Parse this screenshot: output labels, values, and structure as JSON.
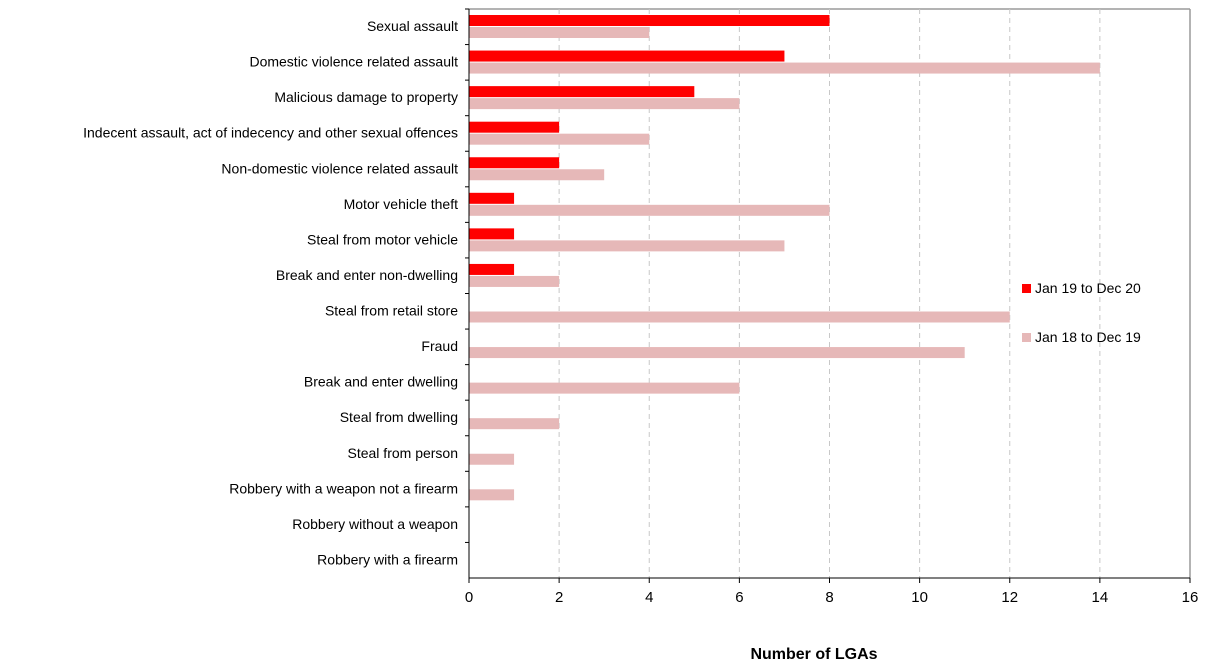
{
  "chart_data": {
    "type": "bar",
    "orientation": "horizontal",
    "categories": [
      "Sexual assault",
      "Domestic violence related assault",
      "Malicious damage to property",
      "Indecent assault, act of indecency and other sexual offences",
      "Non-domestic violence related assault",
      "Motor vehicle theft",
      "Steal from motor vehicle",
      "Break and enter non-dwelling",
      "Steal from retail store",
      "Fraud",
      "Break and enter dwelling",
      "Steal from dwelling",
      "Steal from person",
      "Robbery with a weapon not a firearm",
      "Robbery without a weapon",
      "Robbery with a firearm"
    ],
    "series": [
      {
        "name": "Jan 19 to Dec 20",
        "color": "#ff0000",
        "values": [
          8,
          7,
          5,
          2,
          2,
          1,
          1,
          1,
          0,
          0,
          0,
          0,
          0,
          0,
          0,
          0
        ]
      },
      {
        "name": "Jan 18 to Dec 19",
        "color": "#e6b8b8",
        "values": [
          4,
          14,
          6,
          4,
          3,
          8,
          7,
          2,
          12,
          11,
          6,
          2,
          1,
          1,
          0,
          0
        ]
      }
    ],
    "xlabel": "Number of LGAs",
    "ylabel": "",
    "title": "",
    "xlim": [
      0,
      16
    ],
    "xticks": [
      "0",
      "2",
      "4",
      "6",
      "8",
      "10",
      "12",
      "14",
      "16"
    ],
    "grid": "vertical dashed",
    "legend": "right"
  }
}
